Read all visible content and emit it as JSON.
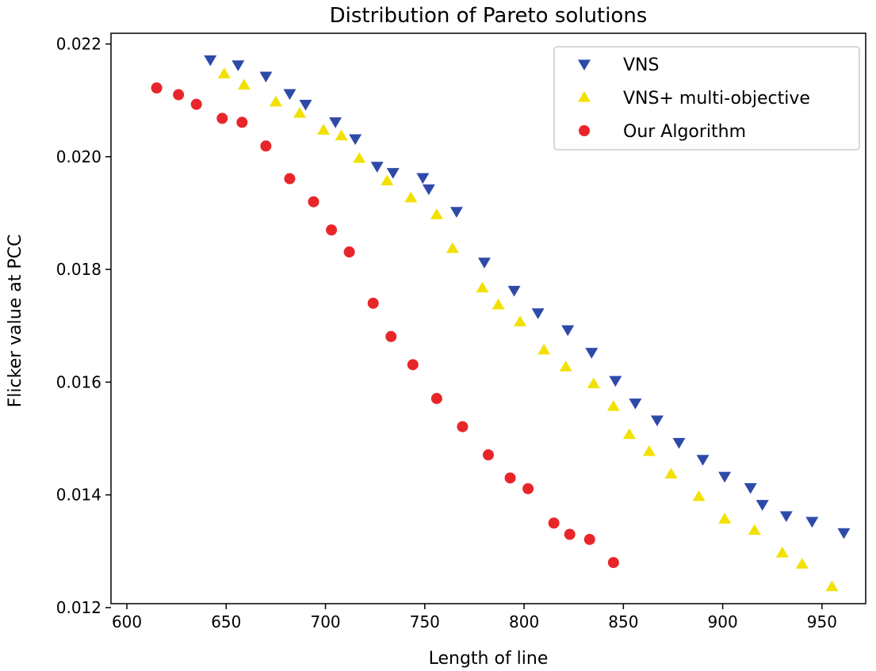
{
  "chart_data": {
    "type": "scatter",
    "title": "Distribution of Pareto solutions",
    "xlabel": "Length of line",
    "ylabel": "Flicker value at PCC",
    "xlim": [
      592,
      972
    ],
    "ylim": [
      0.01207,
      0.02219
    ],
    "xticks": [
      600,
      650,
      700,
      750,
      800,
      850,
      900,
      950
    ],
    "xtick_labels": [
      "600",
      "650",
      "700",
      "750",
      "800",
      "850",
      "900",
      "950"
    ],
    "yticks": [
      0.012,
      0.014,
      0.016,
      0.018,
      0.02,
      0.022
    ],
    "ytick_labels": [
      "0.012",
      "0.014",
      "0.016",
      "0.018",
      "0.020",
      "0.022"
    ],
    "grid": false,
    "legend_position": "top-right",
    "series": [
      {
        "name": "VNS",
        "marker": "triangle-down",
        "color": "#2e4aa8",
        "points": [
          [
            642,
            0.02172
          ],
          [
            656,
            0.02163
          ],
          [
            670,
            0.02143
          ],
          [
            682,
            0.02112
          ],
          [
            690,
            0.02093
          ],
          [
            705,
            0.02062
          ],
          [
            715,
            0.02032
          ],
          [
            726,
            0.01983
          ],
          [
            734,
            0.01972
          ],
          [
            749,
            0.01963
          ],
          [
            752,
            0.01943
          ],
          [
            766,
            0.01903
          ],
          [
            780,
            0.01813
          ],
          [
            795,
            0.01763
          ],
          [
            807,
            0.01723
          ],
          [
            822,
            0.01693
          ],
          [
            834,
            0.01653
          ],
          [
            846,
            0.01603
          ],
          [
            856,
            0.01563
          ],
          [
            867,
            0.01533
          ],
          [
            878,
            0.01493
          ],
          [
            890,
            0.01463
          ],
          [
            901,
            0.01433
          ],
          [
            914,
            0.01413
          ],
          [
            920,
            0.01383
          ],
          [
            932,
            0.01363
          ],
          [
            945,
            0.01353
          ],
          [
            961,
            0.01333
          ]
        ]
      },
      {
        "name": "VNS+ multi-objective",
        "marker": "triangle-up",
        "color": "#f2e100",
        "points": [
          [
            649,
            0.02147
          ],
          [
            659,
            0.02127
          ],
          [
            675,
            0.02097
          ],
          [
            687,
            0.02077
          ],
          [
            699,
            0.02047
          ],
          [
            708,
            0.02037
          ],
          [
            717,
            0.01997
          ],
          [
            731,
            0.01957
          ],
          [
            743,
            0.01927
          ],
          [
            756,
            0.01897
          ],
          [
            764,
            0.01837
          ],
          [
            779,
            0.01767
          ],
          [
            787,
            0.01737
          ],
          [
            798,
            0.01707
          ],
          [
            810,
            0.01657
          ],
          [
            821,
            0.01627
          ],
          [
            835,
            0.01597
          ],
          [
            845,
            0.01557
          ],
          [
            853,
            0.01507
          ],
          [
            863,
            0.01477
          ],
          [
            874,
            0.01437
          ],
          [
            888,
            0.01397
          ],
          [
            901,
            0.01357
          ],
          [
            916,
            0.01337
          ],
          [
            930,
            0.01297
          ],
          [
            940,
            0.01277
          ],
          [
            955,
            0.01237
          ]
        ]
      },
      {
        "name": "Our Algorithm",
        "marker": "circle",
        "color": "#e8262a",
        "points": [
          [
            615,
            0.02122
          ],
          [
            626,
            0.0211
          ],
          [
            635,
            0.02093
          ],
          [
            648,
            0.02068
          ],
          [
            658,
            0.02061
          ],
          [
            670,
            0.02019
          ],
          [
            682,
            0.01961
          ],
          [
            694,
            0.0192
          ],
          [
            703,
            0.0187
          ],
          [
            712,
            0.01831
          ],
          [
            724,
            0.0174
          ],
          [
            733,
            0.01681
          ],
          [
            744,
            0.01631
          ],
          [
            756,
            0.01571
          ],
          [
            769,
            0.01521
          ],
          [
            782,
            0.01471
          ],
          [
            793,
            0.0143
          ],
          [
            802,
            0.01411
          ],
          [
            815,
            0.0135
          ],
          [
            823,
            0.0133
          ],
          [
            833,
            0.01321
          ],
          [
            845,
            0.0128
          ]
        ]
      }
    ]
  }
}
